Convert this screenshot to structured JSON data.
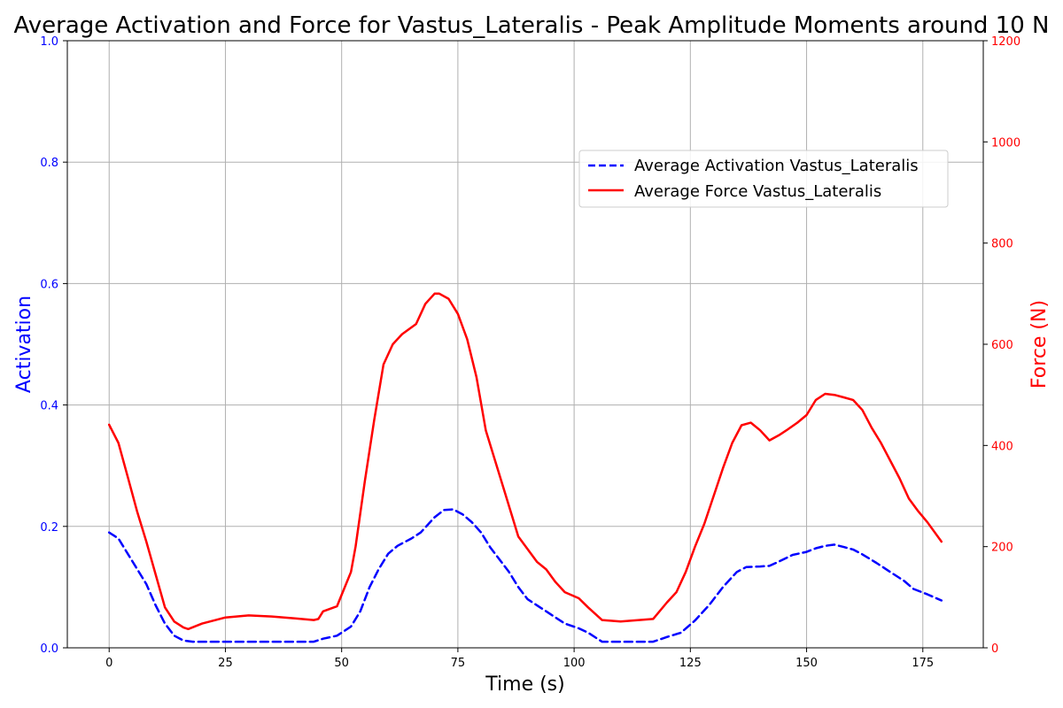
{
  "chart_data": {
    "type": "line",
    "title": "Average Activation and Force for Vastus_Lateralis - Peak Amplitude Moments around 10 N",
    "xlabel": "Time (s)",
    "ylabel_left": "Activation",
    "ylabel_right": "Force (N)",
    "xlim": [
      -9,
      188
    ],
    "ylim_left": [
      0,
      1.0
    ],
    "ylim_right": [
      0,
      1200
    ],
    "x_ticks": [
      0,
      25,
      50,
      75,
      100,
      125,
      150,
      175
    ],
    "y_ticks_left": [
      0.0,
      0.2,
      0.4,
      0.6,
      0.8,
      1.0
    ],
    "y_ticks_right": [
      0,
      200,
      400,
      600,
      800,
      1000,
      1200
    ],
    "grid": true,
    "legend_position": "upper-right",
    "series": [
      {
        "name": "Average Activation Vastus_Lateralis",
        "axis": "left",
        "color": "#0000ff",
        "style": "dashed",
        "points": [
          [
            0,
            0.19
          ],
          [
            2,
            0.18
          ],
          [
            4,
            0.155
          ],
          [
            6,
            0.13
          ],
          [
            8,
            0.105
          ],
          [
            10,
            0.07
          ],
          [
            12,
            0.04
          ],
          [
            14,
            0.02
          ],
          [
            16,
            0.012
          ],
          [
            18,
            0.01
          ],
          [
            25,
            0.01
          ],
          [
            35,
            0.01
          ],
          [
            44,
            0.01
          ],
          [
            46,
            0.015
          ],
          [
            49,
            0.02
          ],
          [
            52,
            0.035
          ],
          [
            54,
            0.06
          ],
          [
            56,
            0.1
          ],
          [
            58,
            0.13
          ],
          [
            60,
            0.155
          ],
          [
            62,
            0.168
          ],
          [
            65,
            0.18
          ],
          [
            67,
            0.19
          ],
          [
            70,
            0.215
          ],
          [
            72,
            0.227
          ],
          [
            74,
            0.228
          ],
          [
            76,
            0.22
          ],
          [
            78,
            0.207
          ],
          [
            80,
            0.19
          ],
          [
            82,
            0.165
          ],
          [
            84,
            0.145
          ],
          [
            86,
            0.125
          ],
          [
            88,
            0.1
          ],
          [
            90,
            0.08
          ],
          [
            93,
            0.065
          ],
          [
            96,
            0.05
          ],
          [
            98,
            0.04
          ],
          [
            101,
            0.032
          ],
          [
            103,
            0.025
          ],
          [
            106,
            0.01
          ],
          [
            110,
            0.01
          ],
          [
            117,
            0.01
          ],
          [
            120,
            0.018
          ],
          [
            123,
            0.025
          ],
          [
            126,
            0.045
          ],
          [
            129,
            0.07
          ],
          [
            132,
            0.1
          ],
          [
            135,
            0.125
          ],
          [
            137,
            0.133
          ],
          [
            140,
            0.134
          ],
          [
            142,
            0.135
          ],
          [
            144,
            0.142
          ],
          [
            147,
            0.153
          ],
          [
            150,
            0.158
          ],
          [
            152,
            0.164
          ],
          [
            154,
            0.168
          ],
          [
            156,
            0.17
          ],
          [
            158,
            0.166
          ],
          [
            160,
            0.162
          ],
          [
            162,
            0.154
          ],
          [
            165,
            0.14
          ],
          [
            168,
            0.125
          ],
          [
            171,
            0.11
          ],
          [
            173,
            0.097
          ],
          [
            176,
            0.088
          ],
          [
            179,
            0.078
          ]
        ]
      },
      {
        "name": "Average Force Vastus_Lateralis",
        "axis": "right",
        "color": "#ff0000",
        "style": "solid",
        "points": [
          [
            0,
            441
          ],
          [
            2,
            405
          ],
          [
            4,
            338
          ],
          [
            6,
            270
          ],
          [
            8,
            210
          ],
          [
            10,
            145
          ],
          [
            12,
            80
          ],
          [
            14,
            52
          ],
          [
            16,
            40
          ],
          [
            17,
            37
          ],
          [
            20,
            48
          ],
          [
            25,
            60
          ],
          [
            30,
            64
          ],
          [
            35,
            62
          ],
          [
            40,
            58
          ],
          [
            44,
            55
          ],
          [
            45,
            57
          ],
          [
            46,
            72
          ],
          [
            49,
            82
          ],
          [
            52,
            150
          ],
          [
            53,
            200
          ],
          [
            55,
            330
          ],
          [
            57,
            450
          ],
          [
            59,
            560
          ],
          [
            61,
            600
          ],
          [
            63,
            620
          ],
          [
            66,
            640
          ],
          [
            68,
            680
          ],
          [
            70,
            700
          ],
          [
            71,
            700
          ],
          [
            73,
            690
          ],
          [
            75,
            660
          ],
          [
            77,
            610
          ],
          [
            79,
            535
          ],
          [
            81,
            430
          ],
          [
            83,
            370
          ],
          [
            85,
            310
          ],
          [
            87,
            250
          ],
          [
            88,
            220
          ],
          [
            90,
            195
          ],
          [
            92,
            170
          ],
          [
            94,
            155
          ],
          [
            96,
            130
          ],
          [
            98,
            110
          ],
          [
            101,
            98
          ],
          [
            103,
            80
          ],
          [
            106,
            55
          ],
          [
            110,
            52
          ],
          [
            117,
            57
          ],
          [
            120,
            90
          ],
          [
            122,
            110
          ],
          [
            124,
            150
          ],
          [
            126,
            200
          ],
          [
            128,
            245
          ],
          [
            130,
            300
          ],
          [
            132,
            355
          ],
          [
            134,
            405
          ],
          [
            136,
            440
          ],
          [
            138,
            445
          ],
          [
            140,
            430
          ],
          [
            142,
            410
          ],
          [
            144,
            420
          ],
          [
            146,
            432
          ],
          [
            148,
            445
          ],
          [
            150,
            460
          ],
          [
            152,
            490
          ],
          [
            154,
            502
          ],
          [
            156,
            500
          ],
          [
            158,
            495
          ],
          [
            160,
            490
          ],
          [
            162,
            470
          ],
          [
            164,
            435
          ],
          [
            166,
            405
          ],
          [
            168,
            370
          ],
          [
            170,
            335
          ],
          [
            172,
            295
          ],
          [
            174,
            270
          ],
          [
            176,
            248
          ],
          [
            179,
            210
          ]
        ]
      }
    ]
  }
}
